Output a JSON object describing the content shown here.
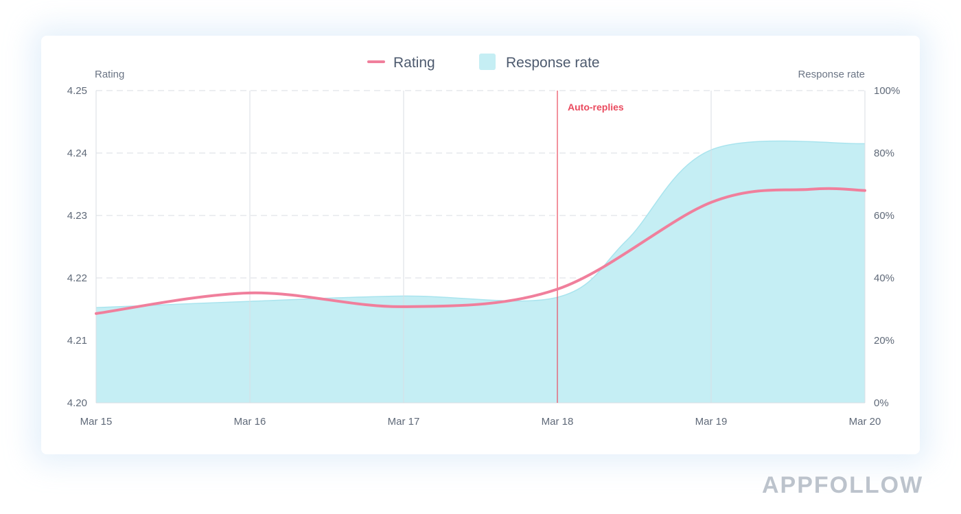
{
  "brand": "APPFOLLOW",
  "chart_data": {
    "type": "line",
    "x": [
      "Mar 15",
      "Mar 16",
      "Mar 17",
      "Mar 18",
      "Mar 19",
      "Mar 20"
    ],
    "series": [
      {
        "name": "Rating",
        "kind": "line",
        "axis": "left",
        "color": "#f07f9c",
        "x": [
          0,
          1,
          2,
          3,
          4,
          4.65,
          5
        ],
        "values": [
          4.2143,
          4.2176,
          4.2154,
          4.2182,
          4.2321,
          4.2342,
          4.234
        ]
      },
      {
        "name": "Response rate",
        "kind": "area",
        "axis": "right",
        "color": "#c5eef4",
        "x": [
          0,
          1,
          2,
          3,
          3.45,
          4,
          5
        ],
        "values": [
          30.5,
          32.5,
          34.2,
          33.8,
          52,
          81,
          83
        ]
      }
    ],
    "left_axis": {
      "label": "Rating",
      "min": 4.2,
      "max": 4.25,
      "ticks": [
        "4.20",
        "4.21",
        "4.22",
        "4.23",
        "4.24",
        "4.25"
      ]
    },
    "right_axis": {
      "label": "Response rate",
      "min": 0,
      "max": 100,
      "ticks": [
        "0%",
        "20%",
        "40%",
        "60%",
        "80%",
        "100%"
      ]
    },
    "annotation": {
      "label": "Auto-replies",
      "x": 3,
      "color": "#ea4a5e"
    },
    "legend": {
      "position": "top-center"
    },
    "grid": {
      "horizontal": "dashed",
      "vertical": "solid"
    }
  }
}
